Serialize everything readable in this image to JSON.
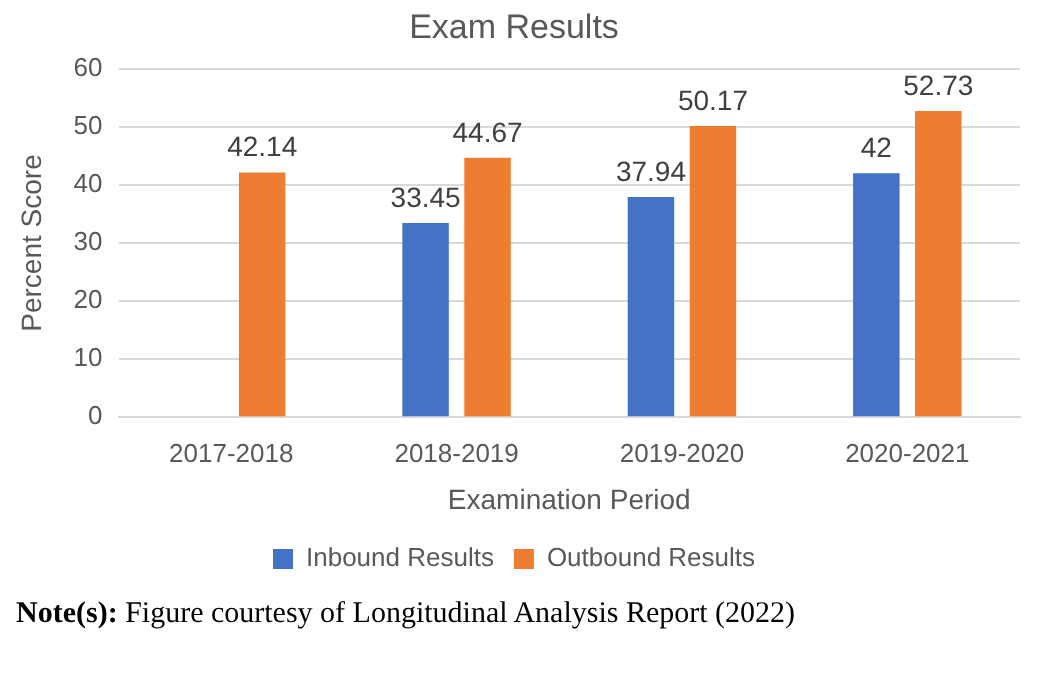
{
  "chart_data": {
    "type": "bar",
    "title": "Exam Results",
    "xlabel": "Examination Period",
    "ylabel": "Percent Score",
    "categories": [
      "2017-2018",
      "2018-2019",
      "2019-2020",
      "2020-2021"
    ],
    "series": [
      {
        "name": "Inbound Results",
        "color": "#4472c4",
        "values": [
          null,
          33.45,
          37.94,
          42
        ]
      },
      {
        "name": "Outbound Results",
        "color": "#ed7d31",
        "values": [
          42.14,
          44.67,
          50.17,
          52.73
        ]
      }
    ],
    "ylim": [
      0,
      60
    ],
    "yticks": [
      0,
      10,
      20,
      30,
      40,
      50,
      60
    ],
    "grid": "y",
    "legend": "bottom",
    "data_labels": true,
    "annotations": [
      "Note(s): Figure courtesy of Longitudinal Analysis Report (2022)"
    ]
  }
}
